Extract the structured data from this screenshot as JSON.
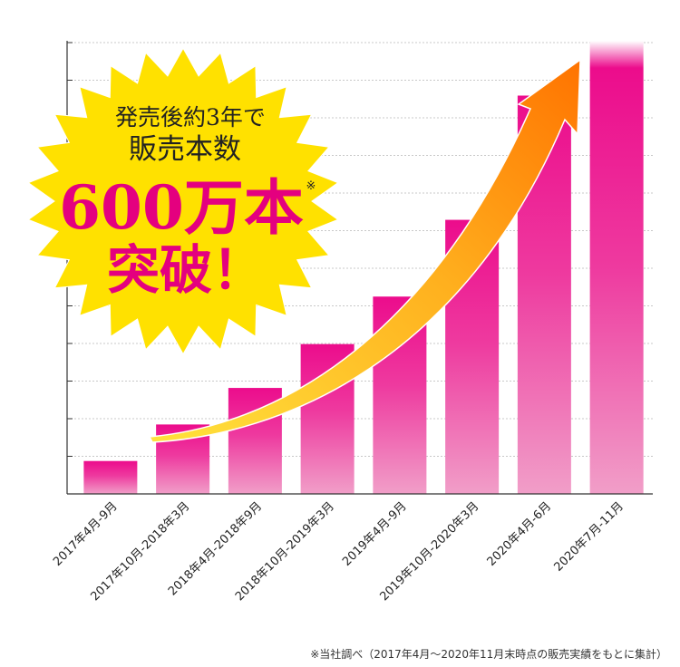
{
  "chart_data": {
    "type": "bar",
    "categories": [
      "2017年4月-9月",
      "2017年10月-2018年3月",
      "2018年4月-2018年9月",
      "2018年10月-2019年3月",
      "2019年4月-9月",
      "2019年10月-2020年3月",
      "2020年4月-6月",
      "2020年7月-11月"
    ],
    "values": [
      0.9,
      1.9,
      2.9,
      4.1,
      5.4,
      7.5,
      10.9,
      12.4
    ],
    "ylim": [
      0,
      12.4
    ],
    "grid": true,
    "xlabel": "",
    "ylabel": ""
  },
  "callout": {
    "line1": "発売後約3年で",
    "line2": "販売本数",
    "big": "600万本",
    "mark": "※",
    "line4": "突破！"
  },
  "footnote": "※当社調べ（2017年4月〜2020年11月末時点の販売実績をもとに集計）",
  "colors": {
    "bar_top": "#ec0c8c",
    "bar_bottom": "#f19ec8",
    "burst": "#ffe100",
    "arrow_start": "#ffdc28",
    "arrow_end": "#ff7c00",
    "accent": "#e4007f"
  }
}
